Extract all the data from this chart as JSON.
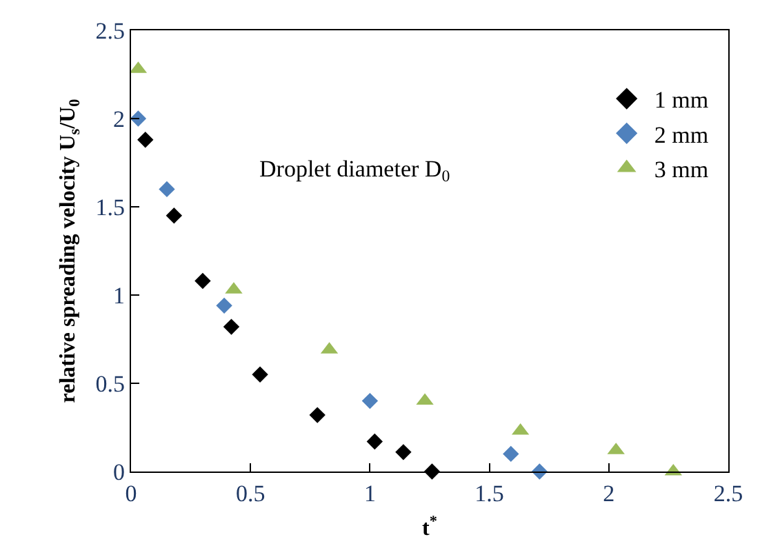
{
  "chart_data": {
    "type": "scatter",
    "xlabel": "t$^{*}$",
    "ylabel": "relative spreading velocity U$_{s}$/U$_{0}$",
    "annotations": [
      "Droplet diameter D$_{0}$"
    ],
    "xlim": [
      0,
      2.5
    ],
    "xticks": [
      0,
      0.5,
      1,
      1.5,
      2,
      2.5
    ],
    "ylim": [
      0,
      2.5
    ],
    "yticks": [
      0,
      0.5,
      1,
      1.5,
      2,
      2.5
    ],
    "grid": false,
    "legend": "top right",
    "series": [
      {
        "name": "1 mm",
        "color": "#000000",
        "marker": "diamond",
        "x": [
          0.06,
          0.18,
          0.3,
          0.42,
          0.54,
          0.78,
          1.02,
          1.14,
          1.26
        ],
        "values": [
          1.88,
          1.45,
          1.08,
          0.82,
          0.55,
          0.32,
          0.17,
          0.11,
          0.0
        ]
      },
      {
        "name": "2 mm",
        "color": "#4f81bd",
        "marker": "diamond",
        "x": [
          0.03,
          0.15,
          0.39,
          1.0,
          1.59,
          1.71
        ],
        "values": [
          2.0,
          1.6,
          0.94,
          0.4,
          0.1,
          0.0
        ]
      },
      {
        "name": "3 mm",
        "color": "#9bbb59",
        "marker": "triangle",
        "x": [
          0.03,
          0.43,
          0.83,
          1.23,
          1.63,
          2.03,
          2.27
        ],
        "values": [
          2.28,
          1.03,
          0.69,
          0.4,
          0.23,
          0.12,
          0.0
        ]
      }
    ]
  }
}
